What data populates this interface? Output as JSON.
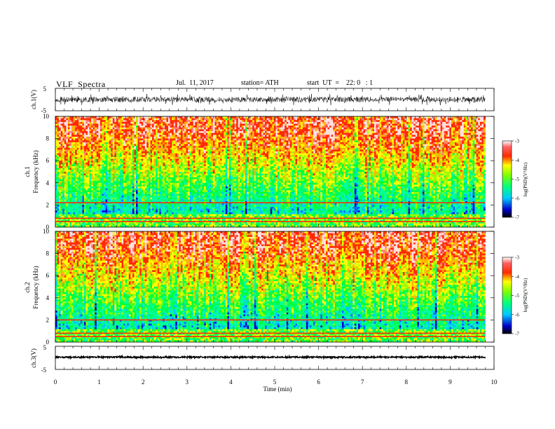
{
  "header": {
    "title": "VLF  Spectra",
    "date": "Jul.  11, 2017",
    "station": "station= ATH",
    "start_ut": "start  UT  =    22: 0   : 1"
  },
  "chart_data": [
    {
      "type": "line",
      "panel": "ch1-waveform",
      "ylabel": "ch.1(V)",
      "ylim": [
        -5,
        5
      ],
      "yticks": [
        "5",
        "-5"
      ],
      "xlim": [
        0,
        10
      ],
      "data_end": 9.8,
      "baseline": 0,
      "amplitude_typical": 1.2,
      "amplitude_peak": 2.5
    },
    {
      "type": "heatmap",
      "panel": "ch1-spectrogram",
      "ylabel": "ch.1\nFrequency  (kHz)",
      "ylim": [
        0,
        10
      ],
      "yticks": [
        "0",
        "2",
        "4",
        "6",
        "8",
        "10"
      ],
      "xlim": [
        0,
        10
      ],
      "data_end": 9.8,
      "colorbar": {
        "label": "log(PSD)(V²/Hz)",
        "range": [
          -7,
          -3
        ],
        "ticks": [
          "-3",
          "-4",
          "-5",
          "-6",
          "-7"
        ]
      },
      "spectral_lines_khz": [
        0.5,
        0.8,
        2.2
      ]
    },
    {
      "type": "heatmap",
      "panel": "ch2-spectrogram",
      "ylabel": "ch.2\nFrequency  (kHz)",
      "ylim": [
        0,
        10
      ],
      "yticks": [
        "0",
        "2",
        "4",
        "6",
        "8",
        "10"
      ],
      "xlim": [
        0,
        10
      ],
      "data_end": 9.8,
      "colorbar": {
        "label": "log(PSD)(V²/Hz)",
        "range": [
          -7,
          -3
        ],
        "ticks": [
          "-3",
          "-4",
          "-5",
          "-6",
          "-7"
        ]
      },
      "spectral_lines_khz": [
        0.5,
        0.8,
        2.0
      ]
    },
    {
      "type": "line",
      "panel": "ch3-waveform",
      "ylabel": "ch.3(V)",
      "xlabel": "Time  (min)",
      "ylim": [
        -5,
        5
      ],
      "yticks": [
        "5",
        "-5"
      ],
      "xlim": [
        0,
        10
      ],
      "xticks": [
        "0",
        "1",
        "2",
        "3",
        "4",
        "5",
        "6",
        "7",
        "8",
        "9",
        "10"
      ],
      "data_end": 9.8,
      "baseline": 0.3,
      "amplitude_typical": 0.3
    }
  ],
  "colors": {
    "spectrum_high": "#ff2a00",
    "spectrum_mid": "#ffff00",
    "spectrum_low": "#00ff7f",
    "spectrum_lowest": "#0000c8",
    "trace": "#000000"
  }
}
